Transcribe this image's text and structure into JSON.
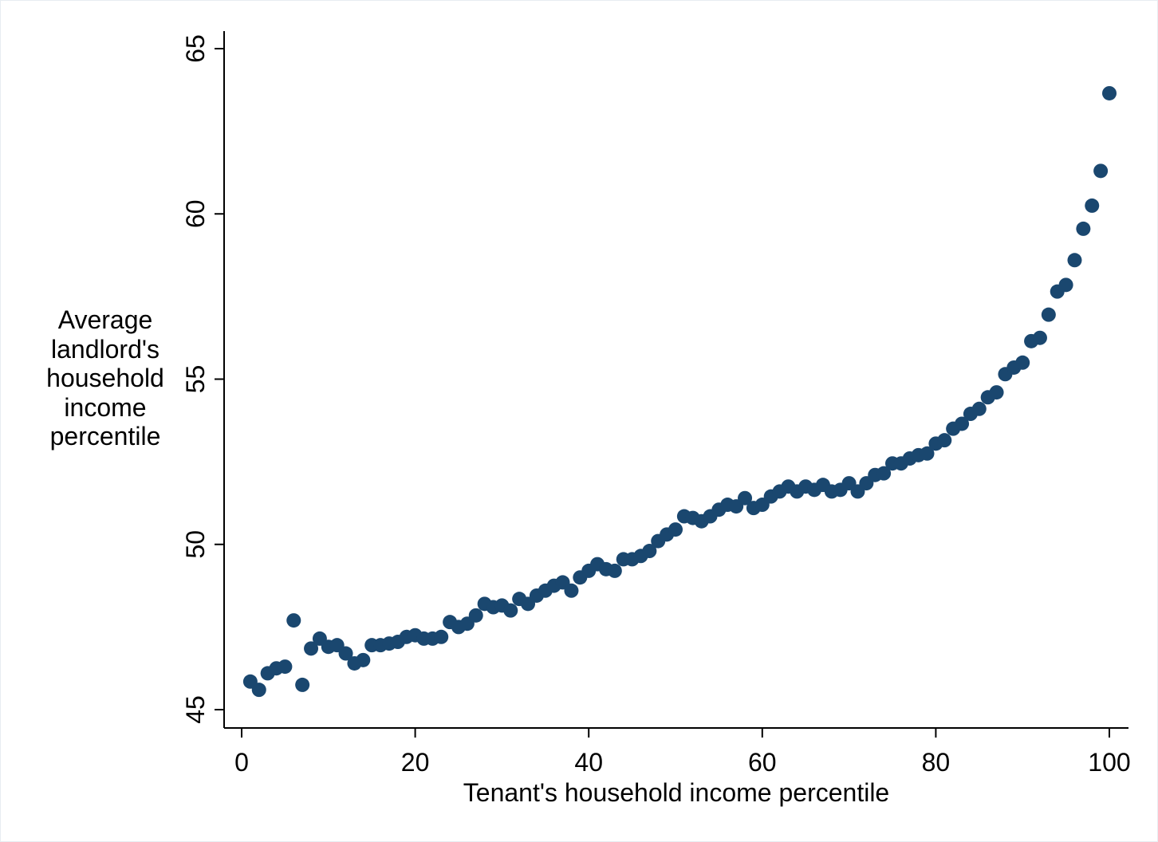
{
  "chart_data": {
    "type": "scatter",
    "xlabel_lines": [
      "Tenant's household income percentile"
    ],
    "ylabel_lines": [
      "Average",
      "landlord's",
      "household",
      "income",
      "percentile"
    ],
    "xlim": [
      0,
      100
    ],
    "ylim": [
      45,
      65
    ],
    "x_ticks": [
      0,
      20,
      40,
      60,
      80,
      100
    ],
    "y_ticks": [
      45,
      50,
      55,
      60,
      65
    ],
    "marker_color": "#1a476f",
    "grid": false,
    "series": [
      {
        "x": [
          1,
          2,
          3,
          4,
          5,
          6,
          7,
          8,
          9,
          10,
          11,
          12,
          13,
          14,
          15,
          16,
          17,
          18,
          19,
          20,
          21,
          22,
          23,
          24,
          25,
          26,
          27,
          28,
          29,
          30,
          31,
          32,
          33,
          34,
          35,
          36,
          37,
          38,
          39,
          40,
          41,
          42,
          43,
          44,
          45,
          46,
          47,
          48,
          49,
          50,
          51,
          52,
          53,
          54,
          55,
          56,
          57,
          58,
          59,
          60,
          61,
          62,
          63,
          64,
          65,
          66,
          67,
          68,
          69,
          70,
          71,
          72,
          73,
          74,
          75,
          76,
          77,
          78,
          79,
          80,
          81,
          82,
          83,
          84,
          85,
          86,
          87,
          88,
          89,
          90,
          91,
          92,
          93,
          94,
          95,
          96,
          97,
          98,
          99,
          100
        ],
        "y": [
          45.85,
          45.6,
          46.1,
          46.25,
          46.3,
          47.7,
          45.75,
          46.85,
          47.15,
          46.9,
          46.95,
          46.7,
          46.4,
          46.5,
          46.95,
          46.95,
          47.0,
          47.05,
          47.2,
          47.25,
          47.15,
          47.15,
          47.2,
          47.65,
          47.5,
          47.6,
          47.85,
          48.2,
          48.1,
          48.15,
          48.0,
          48.35,
          48.2,
          48.45,
          48.6,
          48.75,
          48.85,
          48.6,
          49.0,
          49.2,
          49.4,
          49.25,
          49.2,
          49.55,
          49.55,
          49.65,
          49.8,
          50.1,
          50.3,
          50.45,
          50.85,
          50.8,
          50.7,
          50.85,
          51.05,
          51.2,
          51.15,
          51.4,
          51.1,
          51.2,
          51.45,
          51.6,
          51.75,
          51.6,
          51.75,
          51.65,
          51.8,
          51.6,
          51.65,
          51.85,
          51.6,
          51.85,
          52.1,
          52.15,
          52.45,
          52.45,
          52.6,
          52.7,
          52.75,
          53.05,
          53.15,
          53.5,
          53.65,
          53.95,
          54.1,
          54.45,
          54.6,
          55.15,
          55.35,
          55.5,
          56.15,
          56.25,
          56.95,
          57.65,
          57.85,
          58.6,
          59.55,
          60.25,
          61.3,
          63.65
        ]
      }
    ]
  }
}
